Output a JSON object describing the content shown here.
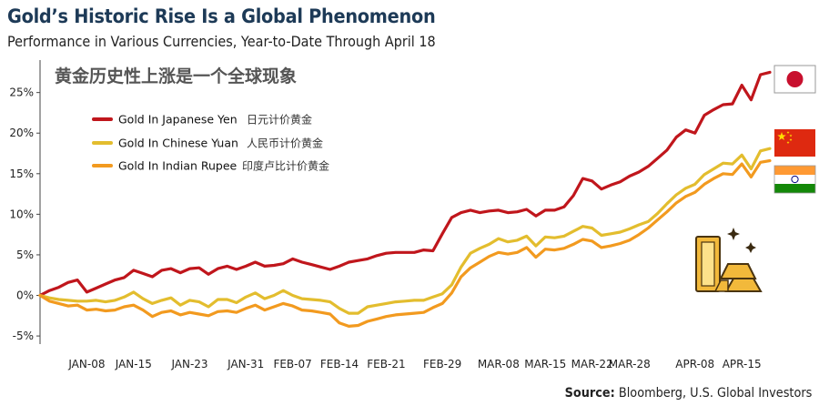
{
  "header": {
    "title": "Gold’s Historic Rise Is a Global Phenomenon",
    "subtitle": "Performance in Various Currencies, Year-to-Date Through April 18"
  },
  "source": {
    "label": "Source:",
    "text": " Bloomberg, U.S. Global Investors"
  },
  "chart_data": {
    "type": "line",
    "title": "Gold’s Historic Rise Is a Global Phenomenon",
    "subtitle": "Performance in Various Currencies, Year-to-Date Through April 18",
    "annotation_cn": "黄金历史性上涨是一个全球现象",
    "xlabel": "",
    "ylabel": "",
    "ylim": [
      -6,
      29
    ],
    "yticks": [
      -5,
      0,
      5,
      10,
      15,
      20,
      25
    ],
    "ytick_labels": [
      "-5%",
      "0%",
      "5%",
      "10%",
      "15%",
      "20%",
      "25%"
    ],
    "xtick_labels": [
      "JAN-08",
      "JAN-15",
      "JAN-23",
      "JAN-31",
      "FEB-07",
      "FEB-14",
      "FEB-21",
      "FEB-29",
      "MAR-08",
      "MAR-15",
      "MAR-22",
      "MAR-28",
      "APR-08",
      "APR-15"
    ],
    "x": [
      "JAN-01",
      "JAN-02",
      "JAN-03",
      "JAN-04",
      "JAN-05",
      "JAN-08",
      "JAN-09",
      "JAN-10",
      "JAN-11",
      "JAN-12",
      "JAN-15",
      "JAN-16",
      "JAN-17",
      "JAN-18",
      "JAN-19",
      "JAN-22",
      "JAN-23",
      "JAN-24",
      "JAN-25",
      "JAN-26",
      "JAN-29",
      "JAN-30",
      "JAN-31",
      "FEB-01",
      "FEB-02",
      "FEB-05",
      "FEB-06",
      "FEB-07",
      "FEB-08",
      "FEB-09",
      "FEB-12",
      "FEB-13",
      "FEB-14",
      "FEB-15",
      "FEB-16",
      "FEB-19",
      "FEB-20",
      "FEB-21",
      "FEB-22",
      "FEB-23",
      "FEB-26",
      "FEB-27",
      "FEB-28",
      "FEB-29",
      "MAR-01",
      "MAR-04",
      "MAR-05",
      "MAR-06",
      "MAR-07",
      "MAR-08",
      "MAR-11",
      "MAR-12",
      "MAR-13",
      "MAR-14",
      "MAR-15",
      "MAR-18",
      "MAR-19",
      "MAR-20",
      "MAR-21",
      "MAR-22",
      "MAR-25",
      "MAR-26",
      "MAR-27",
      "MAR-28",
      "MAR-29",
      "APR-01",
      "APR-02",
      "APR-03",
      "APR-04",
      "APR-05",
      "APR-08",
      "APR-09",
      "APR-10",
      "APR-11",
      "APR-12",
      "APR-15",
      "APR-16",
      "APR-17",
      "APR-18"
    ],
    "series": [
      {
        "name": "Gold In Japanese Yen",
        "name_cn": "日元计价黄金",
        "color": "#c0161c",
        "values": [
          0,
          0.6,
          1.0,
          1.6,
          1.9,
          0.4,
          0.9,
          1.4,
          1.9,
          2.2,
          3.1,
          2.7,
          2.3,
          3.1,
          3.3,
          2.8,
          3.3,
          3.4,
          2.6,
          3.3,
          3.6,
          3.2,
          3.6,
          4.1,
          3.6,
          3.7,
          3.9,
          4.5,
          4.1,
          3.8,
          3.5,
          3.2,
          3.6,
          4.1,
          4.3,
          4.5,
          4.9,
          5.2,
          5.3,
          5.3,
          5.3,
          5.6,
          5.5,
          7.6,
          9.6,
          10.2,
          10.5,
          10.2,
          10.4,
          10.5,
          10.2,
          10.3,
          10.6,
          9.8,
          10.5,
          10.5,
          10.9,
          12.3,
          14.4,
          14.1,
          13.1,
          13.6,
          14.0,
          14.7,
          15.2,
          15.9,
          16.9,
          17.9,
          19.5,
          20.4,
          20.0,
          22.2,
          22.9,
          23.5,
          23.6,
          25.9,
          24.1,
          27.2,
          27.5
        ]
      },
      {
        "name": "Gold In Chinese Yuan",
        "name_cn": "人民币计价黄金",
        "color": "#e3bd2e",
        "values": [
          0,
          -0.3,
          -0.5,
          -0.6,
          -0.7,
          -0.7,
          -0.6,
          -0.8,
          -0.6,
          -0.2,
          0.4,
          -0.4,
          -1.0,
          -0.6,
          -0.3,
          -1.2,
          -0.6,
          -0.8,
          -1.4,
          -0.5,
          -0.5,
          -0.9,
          -0.2,
          0.3,
          -0.4,
          0.0,
          0.6,
          0.0,
          -0.4,
          -0.5,
          -0.6,
          -0.8,
          -1.6,
          -2.2,
          -2.2,
          -1.4,
          -1.2,
          -1.0,
          -0.8,
          -0.7,
          -0.6,
          -0.6,
          -0.2,
          0.2,
          1.3,
          3.5,
          5.2,
          5.8,
          6.3,
          7.0,
          6.6,
          6.8,
          7.3,
          6.1,
          7.2,
          7.1,
          7.3,
          7.9,
          8.5,
          8.3,
          7.4,
          7.6,
          7.8,
          8.2,
          8.7,
          9.1,
          10.1,
          11.3,
          12.4,
          13.2,
          13.7,
          14.9,
          15.6,
          16.3,
          16.2,
          17.3,
          15.6,
          17.8,
          18.1
        ]
      },
      {
        "name": "Gold In Indian Rupee",
        "name_cn": "印度卢比计价黄金",
        "color": "#f29a1f",
        "values": [
          0,
          -0.7,
          -1.0,
          -1.3,
          -1.2,
          -1.8,
          -1.7,
          -1.9,
          -1.8,
          -1.4,
          -1.2,
          -1.8,
          -2.6,
          -2.1,
          -1.9,
          -2.4,
          -2.1,
          -2.3,
          -2.5,
          -2.0,
          -1.9,
          -2.1,
          -1.6,
          -1.2,
          -1.8,
          -1.4,
          -1.0,
          -1.3,
          -1.8,
          -1.9,
          -2.1,
          -2.3,
          -3.4,
          -3.8,
          -3.7,
          -3.2,
          -2.9,
          -2.6,
          -2.4,
          -2.3,
          -2.2,
          -2.1,
          -1.5,
          -1.0,
          0.3,
          2.3,
          3.4,
          4.1,
          4.8,
          5.3,
          5.1,
          5.3,
          5.9,
          4.7,
          5.7,
          5.6,
          5.8,
          6.3,
          6.9,
          6.7,
          5.9,
          6.1,
          6.4,
          6.8,
          7.5,
          8.3,
          9.3,
          10.3,
          11.4,
          12.2,
          12.7,
          13.7,
          14.4,
          15.0,
          14.9,
          16.2,
          14.6,
          16.4,
          16.6
        ]
      }
    ]
  },
  "flags": [
    {
      "name": "japan-flag-icon",
      "series": 0
    },
    {
      "name": "china-flag-icon",
      "series": 1
    },
    {
      "name": "india-flag-icon",
      "series": 2
    }
  ],
  "colors": {
    "title": "#1d3a57",
    "axis": "#444444",
    "grid": "#e5e5e5"
  }
}
